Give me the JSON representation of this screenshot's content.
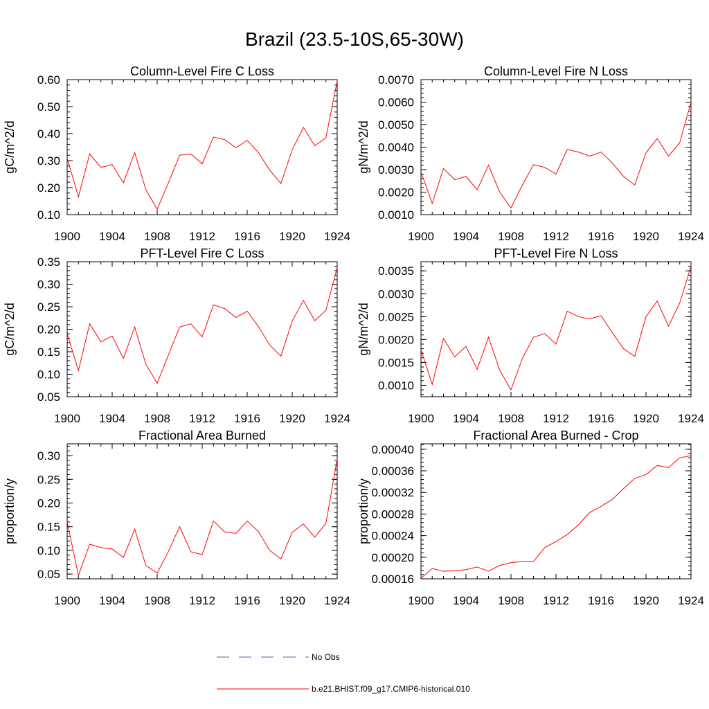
{
  "figure_title": "Brazil (23.5-10S,65-30W)",
  "legend": {
    "entries": [
      {
        "label": "No Obs",
        "style": "dashed",
        "color": "#5a5ab4"
      },
      {
        "label": "b.e21.BHIST.f09_g17.CMIP6-historical.010",
        "style": "solid",
        "color": "#ff0000"
      }
    ]
  },
  "chart_data": [
    {
      "type": "line",
      "title": "Column-Level Fire C Loss",
      "ylabel": "gC/m^2/d",
      "xlim": [
        1900,
        1924
      ],
      "ylim": [
        0.1,
        0.6
      ],
      "xticks": [
        "1900",
        "1904",
        "1908",
        "1912",
        "1916",
        "1920",
        "1924"
      ],
      "yticks": [
        "0.10",
        "0.20",
        "0.30",
        "0.40",
        "0.50",
        "0.60"
      ],
      "yticks_values": [
        0.1,
        0.2,
        0.3,
        0.4,
        0.5,
        0.6
      ],
      "x": [
        1900,
        1901,
        1902,
        1903,
        1904,
        1905,
        1906,
        1907,
        1908,
        1909,
        1910,
        1911,
        1912,
        1913,
        1914,
        1915,
        1916,
        1917,
        1918,
        1919,
        1920,
        1921,
        1922,
        1923,
        1924
      ],
      "series": [
        {
          "name": "b.e21.BHIST.f09_g17.CMIP6-historical.010",
          "color": "#ff0000",
          "values": [
            0.31,
            0.165,
            0.325,
            0.275,
            0.285,
            0.218,
            0.33,
            0.192,
            0.12,
            0.218,
            0.32,
            0.325,
            0.288,
            0.387,
            0.378,
            0.348,
            0.375,
            0.33,
            0.265,
            0.215,
            0.34,
            0.423,
            0.355,
            0.385,
            0.595
          ]
        }
      ]
    },
    {
      "type": "line",
      "title": "Column-Level Fire N Loss",
      "ylabel": "gN/m^2/d",
      "xlim": [
        1900,
        1924
      ],
      "ylim": [
        0.001,
        0.007
      ],
      "xticks": [
        "1900",
        "1904",
        "1908",
        "1912",
        "1916",
        "1920",
        "1924"
      ],
      "yticks": [
        "0.0010",
        "0.0020",
        "0.0030",
        "0.0040",
        "0.0050",
        "0.0060",
        "0.0070"
      ],
      "yticks_values": [
        0.001,
        0.002,
        0.003,
        0.004,
        0.005,
        0.006,
        0.007
      ],
      "x": [
        1900,
        1901,
        1902,
        1903,
        1904,
        1905,
        1906,
        1907,
        1908,
        1909,
        1910,
        1911,
        1912,
        1913,
        1914,
        1915,
        1916,
        1917,
        1918,
        1919,
        1920,
        1921,
        1922,
        1923,
        1924
      ],
      "series": [
        {
          "name": "b.e21.BHIST.f09_g17.CMIP6-historical.010",
          "color": "#ff0000",
          "values": [
            0.0029,
            0.0015,
            0.00305,
            0.00255,
            0.0027,
            0.0021,
            0.0032,
            0.002,
            0.0013,
            0.0023,
            0.00322,
            0.0031,
            0.0028,
            0.0039,
            0.00378,
            0.0036,
            0.00378,
            0.0033,
            0.0027,
            0.00232,
            0.00375,
            0.00438,
            0.0036,
            0.0042,
            0.006
          ]
        }
      ]
    },
    {
      "type": "line",
      "title": "PFT-Level Fire C Loss",
      "ylabel": "gC/m^2/d",
      "xlim": [
        1900,
        1924
      ],
      "ylim": [
        0.05,
        0.35
      ],
      "xticks": [
        "1900",
        "1904",
        "1908",
        "1912",
        "1916",
        "1920",
        "1924"
      ],
      "yticks": [
        "0.05",
        "0.10",
        "0.15",
        "0.20",
        "0.25",
        "0.30",
        "0.35"
      ],
      "yticks_values": [
        0.05,
        0.1,
        0.15,
        0.2,
        0.25,
        0.3,
        0.35
      ],
      "x": [
        1900,
        1901,
        1902,
        1903,
        1904,
        1905,
        1906,
        1907,
        1908,
        1909,
        1910,
        1911,
        1912,
        1913,
        1914,
        1915,
        1916,
        1917,
        1918,
        1919,
        1920,
        1921,
        1922,
        1923,
        1924
      ],
      "series": [
        {
          "name": "b.e21.BHIST.f09_g17.CMIP6-historical.010",
          "color": "#ff0000",
          "values": [
            0.19,
            0.108,
            0.212,
            0.172,
            0.185,
            0.135,
            0.205,
            0.122,
            0.08,
            0.143,
            0.205,
            0.212,
            0.183,
            0.254,
            0.246,
            0.226,
            0.24,
            0.206,
            0.165,
            0.14,
            0.218,
            0.264,
            0.219,
            0.242,
            0.337
          ]
        }
      ]
    },
    {
      "type": "line",
      "title": "PFT-Level Fire N Loss",
      "ylabel": "gN/m^2/d",
      "xlim": [
        1900,
        1924
      ],
      "ylim": [
        0.00075,
        0.0037
      ],
      "xticks": [
        "1900",
        "1904",
        "1908",
        "1912",
        "1916",
        "1920",
        "1924"
      ],
      "yticks": [
        "0.0010",
        "0.0015",
        "0.0020",
        "0.0025",
        "0.0030",
        "0.0035"
      ],
      "yticks_values": [
        0.001,
        0.0015,
        0.002,
        0.0025,
        0.003,
        0.0035
      ],
      "x": [
        1900,
        1901,
        1902,
        1903,
        1904,
        1905,
        1906,
        1907,
        1908,
        1909,
        1910,
        1911,
        1912,
        1913,
        1914,
        1915,
        1916,
        1917,
        1918,
        1919,
        1920,
        1921,
        1922,
        1923,
        1924
      ],
      "series": [
        {
          "name": "b.e21.BHIST.f09_g17.CMIP6-historical.010",
          "color": "#ff0000",
          "values": [
            0.00178,
            0.00102,
            0.00202,
            0.00162,
            0.00185,
            0.00135,
            0.00205,
            0.00133,
            0.0009,
            0.00158,
            0.00205,
            0.00213,
            0.0019,
            0.00262,
            0.0025,
            0.00245,
            0.00252,
            0.00215,
            0.0018,
            0.00163,
            0.0025,
            0.00284,
            0.00229,
            0.0028,
            0.0036
          ]
        }
      ]
    },
    {
      "type": "line",
      "title": "Fractional Area Burned",
      "ylabel": "proportion/y",
      "xlim": [
        1900,
        1924
      ],
      "ylim": [
        0.04,
        0.325
      ],
      "xticks": [
        "1900",
        "1904",
        "1908",
        "1912",
        "1916",
        "1920",
        "1924"
      ],
      "yticks": [
        "0.05",
        "0.10",
        "0.15",
        "0.20",
        "0.25",
        "0.30"
      ],
      "yticks_values": [
        0.05,
        0.1,
        0.15,
        0.2,
        0.25,
        0.3
      ],
      "x": [
        1900,
        1901,
        1902,
        1903,
        1904,
        1905,
        1906,
        1907,
        1908,
        1909,
        1910,
        1911,
        1912,
        1913,
        1914,
        1915,
        1916,
        1917,
        1918,
        1919,
        1920,
        1921,
        1922,
        1923,
        1924
      ],
      "series": [
        {
          "name": "b.e21.BHIST.f09_g17.CMIP6-historical.010",
          "color": "#ff0000",
          "values": [
            0.16,
            0.047,
            0.113,
            0.106,
            0.103,
            0.085,
            0.145,
            0.068,
            0.052,
            0.098,
            0.15,
            0.097,
            0.091,
            0.162,
            0.139,
            0.136,
            0.162,
            0.14,
            0.1,
            0.082,
            0.138,
            0.156,
            0.128,
            0.157,
            0.293
          ]
        }
      ]
    },
    {
      "type": "line",
      "title": "Fractional Area Burned - Crop",
      "ylabel": "proportion/y",
      "xlim": [
        1900,
        1924
      ],
      "ylim": [
        0.00016,
        0.00041
      ],
      "xticks": [
        "1900",
        "1904",
        "1908",
        "1912",
        "1916",
        "1920",
        "1924"
      ],
      "yticks": [
        "0.00016",
        "0.00020",
        "0.00024",
        "0.00028",
        "0.00032",
        "0.00036",
        "0.00040"
      ],
      "yticks_values": [
        0.00016,
        0.0002,
        0.00024,
        0.00028,
        0.00032,
        0.00036,
        0.0004
      ],
      "x": [
        1900,
        1901,
        1902,
        1903,
        1904,
        1905,
        1906,
        1907,
        1908,
        1909,
        1910,
        1911,
        1912,
        1913,
        1914,
        1915,
        1916,
        1917,
        1918,
        1919,
        1920,
        1921,
        1922,
        1923,
        1924
      ],
      "series": [
        {
          "name": "b.e21.BHIST.f09_g17.CMIP6-historical.010",
          "color": "#ff0000",
          "values": [
            0.000161,
            0.000179,
            0.000174,
            0.000175,
            0.000177,
            0.000182,
            0.000174,
            0.000185,
            0.00019,
            0.000192,
            0.000192,
            0.000218,
            0.000229,
            0.000242,
            0.00026,
            0.000283,
            0.000294,
            0.000307,
            0.000327,
            0.000346,
            0.000353,
            0.00037,
            0.000366,
            0.000384,
            0.000388
          ]
        }
      ]
    }
  ]
}
